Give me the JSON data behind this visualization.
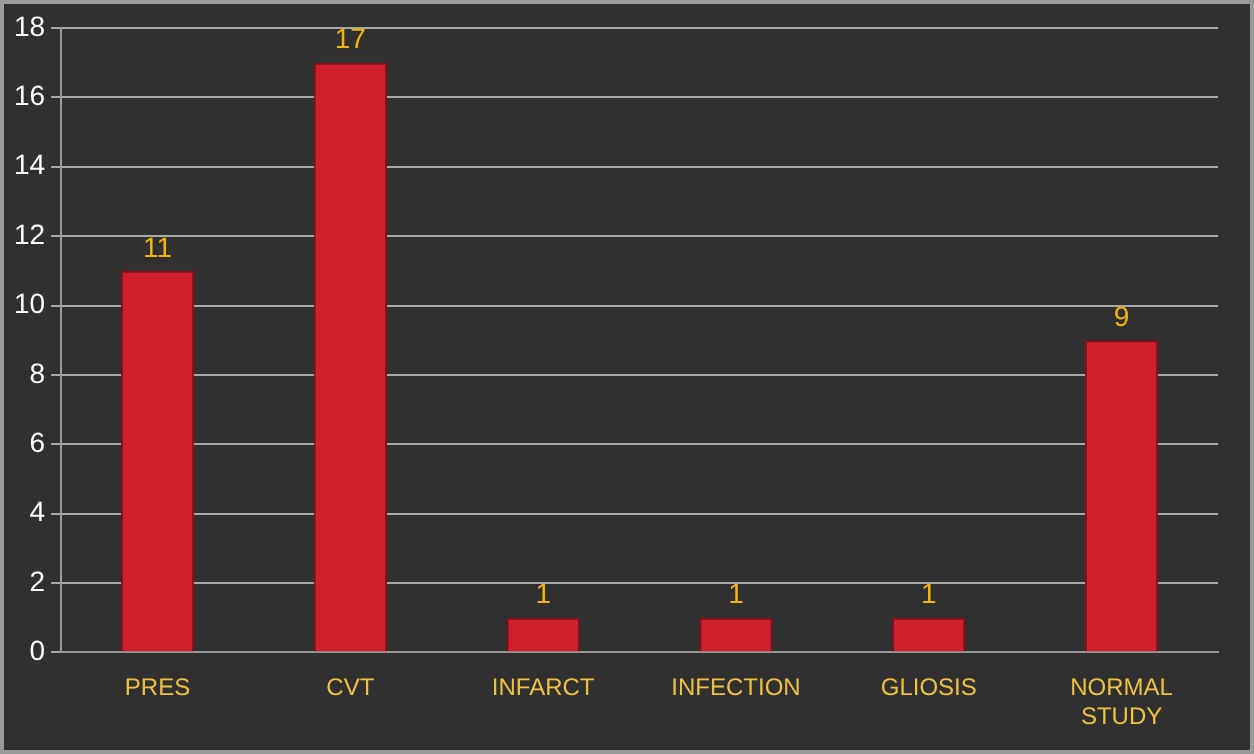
{
  "chart_data": {
    "type": "bar",
    "categories": [
      "PRES",
      "CVT",
      "INFARCT",
      "INFECTION",
      "GLIOSIS",
      "NORMAL STUDY"
    ],
    "values": [
      11,
      17,
      1,
      1,
      1,
      9
    ],
    "color": "#d0202e",
    "ylim": [
      0,
      18
    ],
    "yticks": [
      0,
      2,
      4,
      6,
      8,
      10,
      12,
      14,
      16,
      18
    ],
    "grid": "y",
    "data_labels": true
  }
}
